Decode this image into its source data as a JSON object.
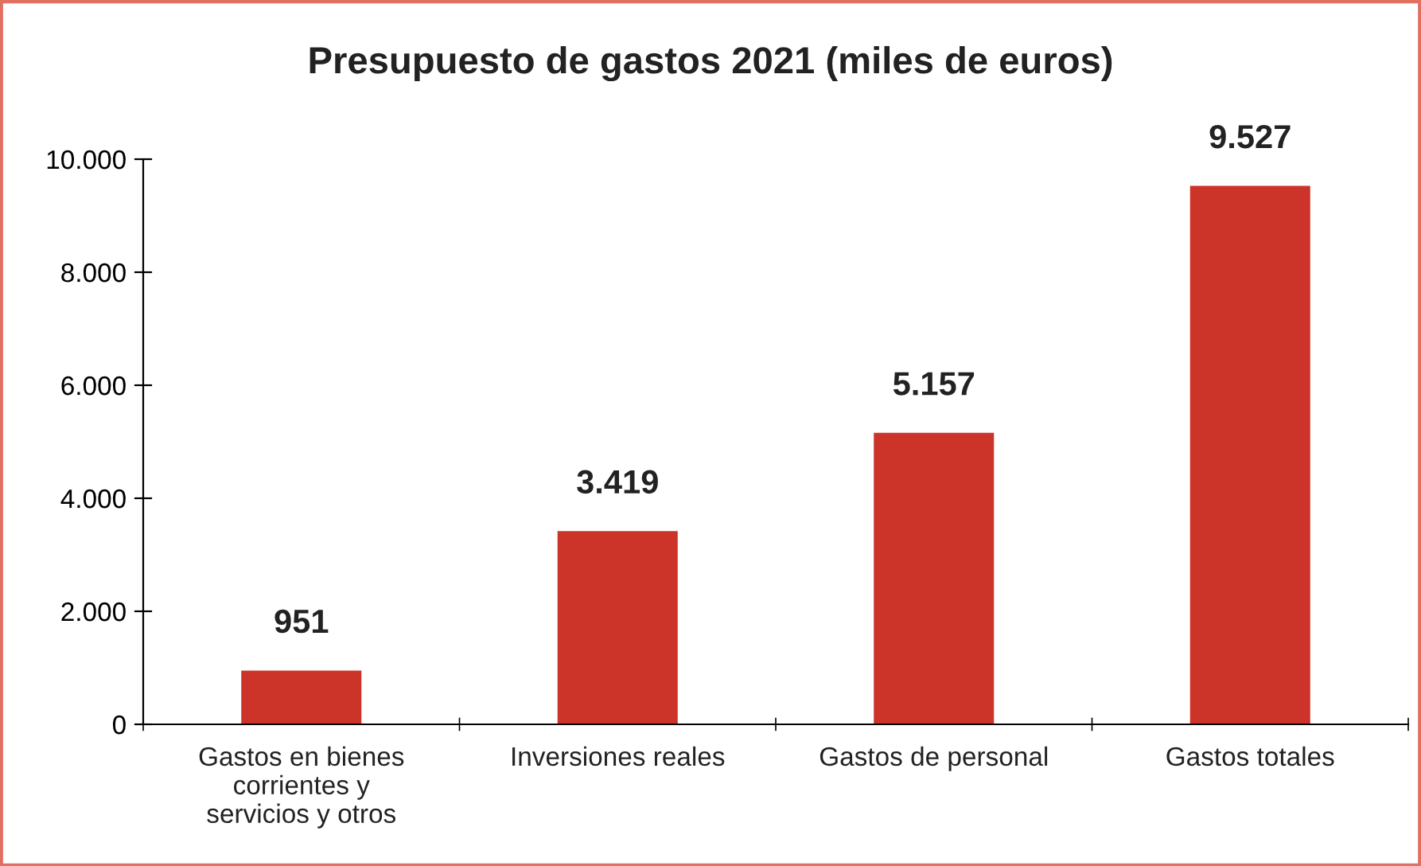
{
  "chart_data": {
    "type": "bar",
    "title": "Presupuesto de gastos 2021 (miles de euros)",
    "categories": [
      "Gastos en bienes\ncorrientes y\nservicios y otros",
      "Inversiones reales",
      "Gastos de personal",
      "Gastos totales"
    ],
    "values": [
      951,
      3419,
      5157,
      9527
    ],
    "value_labels": [
      "951",
      "3.419",
      "5.157",
      "9.527"
    ],
    "color": "#cc3329",
    "ylim": [
      0,
      10000
    ],
    "yticks": [
      0,
      {
        "value": 2000,
        "label": "2.000"
      },
      {
        "value": 4000,
        "label": "4.000"
      },
      {
        "value": 6000,
        "label": "6.000"
      },
      {
        "value": 8000,
        "label": "8.000"
      },
      {
        "value": 10000,
        "label": "10.000"
      }
    ],
    "grid": false,
    "legend": false
  }
}
